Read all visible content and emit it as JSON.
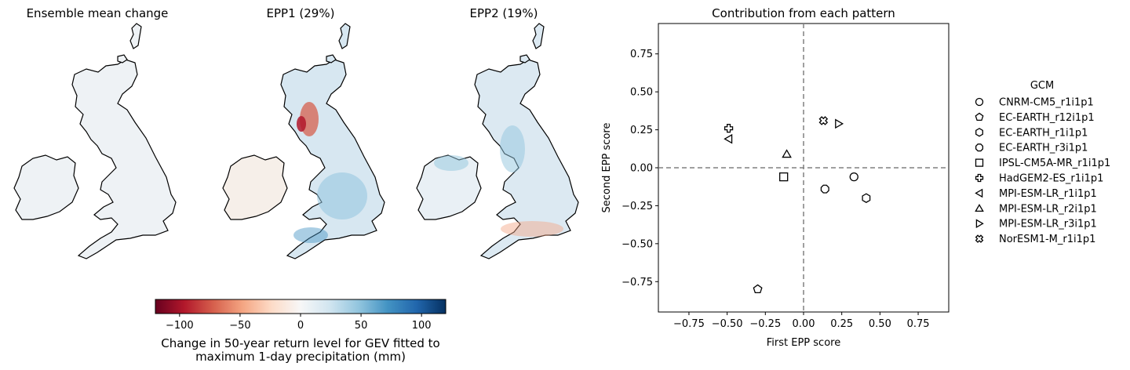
{
  "maps": [
    {
      "title": "Ensemble mean change",
      "style": "mean"
    },
    {
      "title": "EPP1 (29%)",
      "style": "epp1"
    },
    {
      "title": "EPP2 (19%)",
      "style": "epp2"
    }
  ],
  "colorbar": {
    "colormap": "RdBu",
    "vmin": -120,
    "vmax": 120,
    "ticks": [
      -100,
      -50,
      0,
      50,
      100
    ],
    "tick_labels": [
      "−100",
      "−50",
      "0",
      "50",
      "100"
    ],
    "label_line1": "Change in 50-year return level for GEV fitted to",
    "label_line2": "maximum 1-day precipitation (mm)"
  },
  "chart_data": {
    "type": "scatter",
    "title": "Contribution from each pattern",
    "xlabel": "First EPP score",
    "ylabel": "Second EPP score",
    "xlim": [
      -0.95,
      0.95
    ],
    "ylim": [
      -0.95,
      0.95
    ],
    "xticks": [
      -0.75,
      -0.5,
      -0.25,
      0.0,
      0.25,
      0.5,
      0.75
    ],
    "xtick_labels": [
      "−0.75",
      "−0.50",
      "−0.25",
      "0.00",
      "0.25",
      "0.50",
      "0.75"
    ],
    "yticks": [
      0.75,
      0.5,
      0.25,
      0.0,
      -0.25,
      -0.5,
      -0.75
    ],
    "ytick_labels": [
      "0.75",
      "0.50",
      "0.25",
      "0.00",
      "−0.25",
      "−0.50",
      "−0.75"
    ],
    "grid": false,
    "reference_lines": {
      "x": 0,
      "y": 0,
      "style": "dashed",
      "color": "#808080"
    },
    "legend": {
      "title": "GCM",
      "placement": "outside-right"
    },
    "points": [
      {
        "name": "CNRM-CM5_r1i1p1",
        "marker": "circle",
        "x": 0.33,
        "y": -0.06
      },
      {
        "name": "EC-EARTH_r12i1p1",
        "marker": "pentagon",
        "x": -0.3,
        "y": -0.8
      },
      {
        "name": "EC-EARTH_r1i1p1",
        "marker": "hexagon",
        "x": 0.41,
        "y": -0.2
      },
      {
        "name": "EC-EARTH_r3i1p1",
        "marker": "octagon",
        "x": 0.14,
        "y": -0.14
      },
      {
        "name": "IPSL-CM5A-MR_r1i1p1",
        "marker": "square",
        "x": -0.13,
        "y": -0.06
      },
      {
        "name": "HadGEM2-ES_r1i1p1",
        "marker": "plus",
        "x": -0.49,
        "y": 0.26
      },
      {
        "name": "MPI-ESM-LR_r1i1p1",
        "marker": "triangle-left",
        "x": -0.49,
        "y": 0.19
      },
      {
        "name": "MPI-ESM-LR_r2i1p1",
        "marker": "triangle-up",
        "x": -0.11,
        "y": 0.09
      },
      {
        "name": "MPI-ESM-LR_r3i1p1",
        "marker": "triangle-right",
        "x": 0.23,
        "y": 0.29
      },
      {
        "name": "NorESM1-M_r1i1p1",
        "marker": "x-filled",
        "x": 0.13,
        "y": 0.31
      }
    ]
  }
}
